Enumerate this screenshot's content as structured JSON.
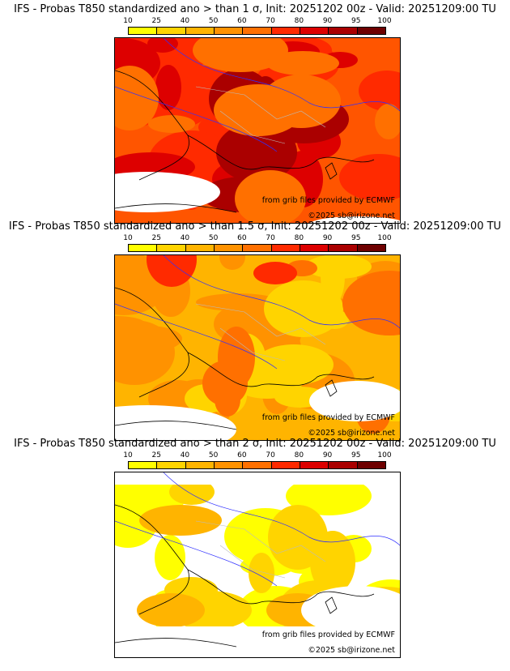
{
  "panels": [
    {
      "title": "IFS - Probas T850  standardized ano > than 1 σ, Init: 20251202 00z - Valid: 20251209:00 TU",
      "level": "1"
    },
    {
      "title": "IFS - Probas T850  standardized ano > than 1.5 σ, Init: 20251202 00z - Valid: 20251209:00 TU",
      "level": "1.5"
    },
    {
      "title": "IFS - Probas T850  standardized ano > than 2 σ, Init: 20251202 00z - Valid: 20251209:00 TU",
      "level": "2"
    }
  ],
  "colorbar": {
    "ticks": [
      "10",
      "25",
      "40",
      "50",
      "60",
      "70",
      "80",
      "90",
      "95",
      "100"
    ],
    "colors": [
      "#ffff00",
      "#ffd400",
      "#ffb400",
      "#ff9200",
      "#ff7000",
      "#ff2a00",
      "#dd0000",
      "#aa0000",
      "#6e0000"
    ]
  },
  "credits": {
    "source": "from grib files provided by ECMWF",
    "copyright": "©2025 sb@irizone.net"
  }
}
